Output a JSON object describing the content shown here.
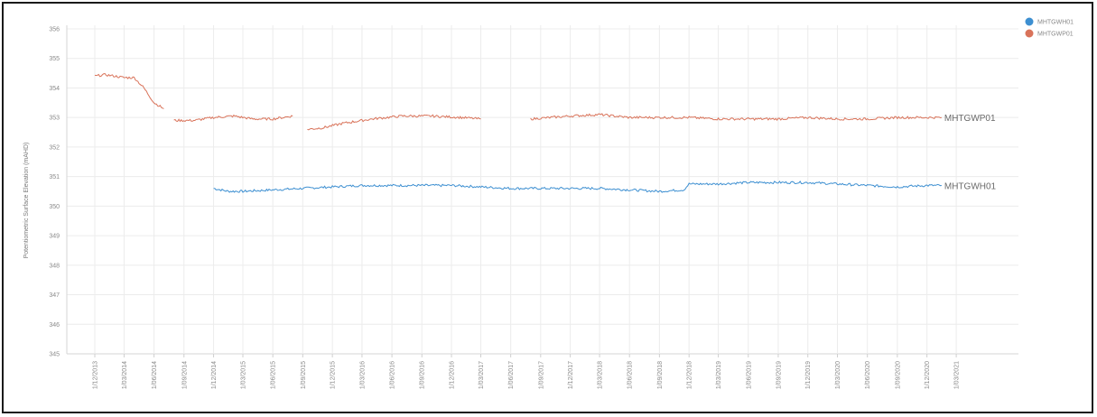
{
  "chart_data": {
    "type": "line",
    "ylabel": "Potentiometric Surface Elevation (mAHD)",
    "xlabel": "",
    "ylim": [
      345,
      356
    ],
    "y_ticks": [
      356,
      355,
      354,
      353,
      352,
      351,
      350,
      349,
      348,
      347,
      346,
      345
    ],
    "x_ticks": [
      "1/12/2013",
      "1/03/2014",
      "1/06/2014",
      "1/09/2014",
      "1/12/2014",
      "1/03/2015",
      "1/06/2015",
      "1/09/2015",
      "1/12/2015",
      "1/03/2016",
      "1/06/2016",
      "1/09/2016",
      "1/12/2016",
      "1/03/2017",
      "1/06/2017",
      "1/09/2017",
      "1/12/2017",
      "1/03/2018",
      "1/06/2018",
      "1/09/2018",
      "1/12/2018",
      "1/03/2019",
      "1/06/2019",
      "1/09/2019",
      "1/12/2019",
      "1/03/2020",
      "1/06/2020",
      "1/09/2020",
      "1/12/2020",
      "1/03/2021"
    ],
    "grid": true,
    "legend_position": "top-right",
    "series": [
      {
        "name": "MHTGWH01",
        "color": "#3d8fd1",
        "end_label": "MHTGWH01",
        "segments": [
          {
            "x": [
              "2014-12-01",
              "2015-01-15",
              "2015-03-01",
              "2015-06-01",
              "2015-09-01",
              "2015-12-01",
              "2016-03-01",
              "2016-06-01",
              "2016-09-01",
              "2016-12-01",
              "2017-03-01",
              "2017-06-01",
              "2017-09-01",
              "2017-12-01",
              "2018-03-01",
              "2018-06-01",
              "2018-09-01",
              "2018-11-15",
              "2018-12-01",
              "2019-03-01",
              "2019-06-01",
              "2019-09-01",
              "2019-12-01",
              "2020-03-01",
              "2020-06-01",
              "2020-09-01",
              "2020-12-01",
              "2021-01-15"
            ],
            "y": [
              350.6,
              350.5,
              350.5,
              350.55,
              350.6,
              350.65,
              350.7,
              350.7,
              350.7,
              350.7,
              350.65,
              350.6,
              350.6,
              350.6,
              350.6,
              350.55,
              350.5,
              350.55,
              350.75,
              350.75,
              350.8,
              350.8,
              350.8,
              350.75,
              350.7,
              350.65,
              350.7,
              350.7
            ]
          }
        ]
      },
      {
        "name": "MHTGWP01",
        "color": "#d9735a",
        "end_label": "MHTGWP01",
        "segments": [
          {
            "x": [
              "2013-12-01",
              "2014-01-01",
              "2014-02-01",
              "2014-03-01",
              "2014-04-01",
              "2014-05-01",
              "2014-06-01",
              "2014-07-01"
            ],
            "y": [
              354.4,
              354.45,
              354.4,
              354.35,
              354.35,
              354.0,
              353.5,
              353.3
            ]
          },
          {
            "x": [
              "2014-08-01",
              "2014-10-01",
              "2014-12-01",
              "2015-02-01",
              "2015-04-01",
              "2015-06-01",
              "2015-08-01"
            ],
            "y": [
              352.9,
              352.9,
              353.0,
              353.05,
              352.95,
              352.95,
              353.05
            ]
          },
          {
            "x": [
              "2015-09-15",
              "2015-11-01",
              "2016-01-01",
              "2016-04-01",
              "2016-07-01",
              "2016-10-01",
              "2017-01-01",
              "2017-03-01"
            ],
            "y": [
              352.6,
              352.65,
              352.8,
              352.95,
              353.05,
              353.05,
              353.0,
              352.95
            ]
          },
          {
            "x": [
              "2017-08-01",
              "2017-12-01",
              "2018-03-01",
              "2018-06-01",
              "2018-09-01",
              "2018-12-01",
              "2019-03-01",
              "2019-06-01",
              "2019-09-01",
              "2019-12-01",
              "2020-03-01",
              "2020-06-01",
              "2020-09-01",
              "2020-12-01",
              "2021-01-15"
            ],
            "y": [
              352.95,
              353.05,
              353.1,
              353.0,
              353.0,
              353.0,
              352.95,
              352.95,
              352.95,
              353.0,
              352.95,
              352.95,
              353.0,
              353.0,
              353.0
            ]
          }
        ]
      }
    ]
  }
}
